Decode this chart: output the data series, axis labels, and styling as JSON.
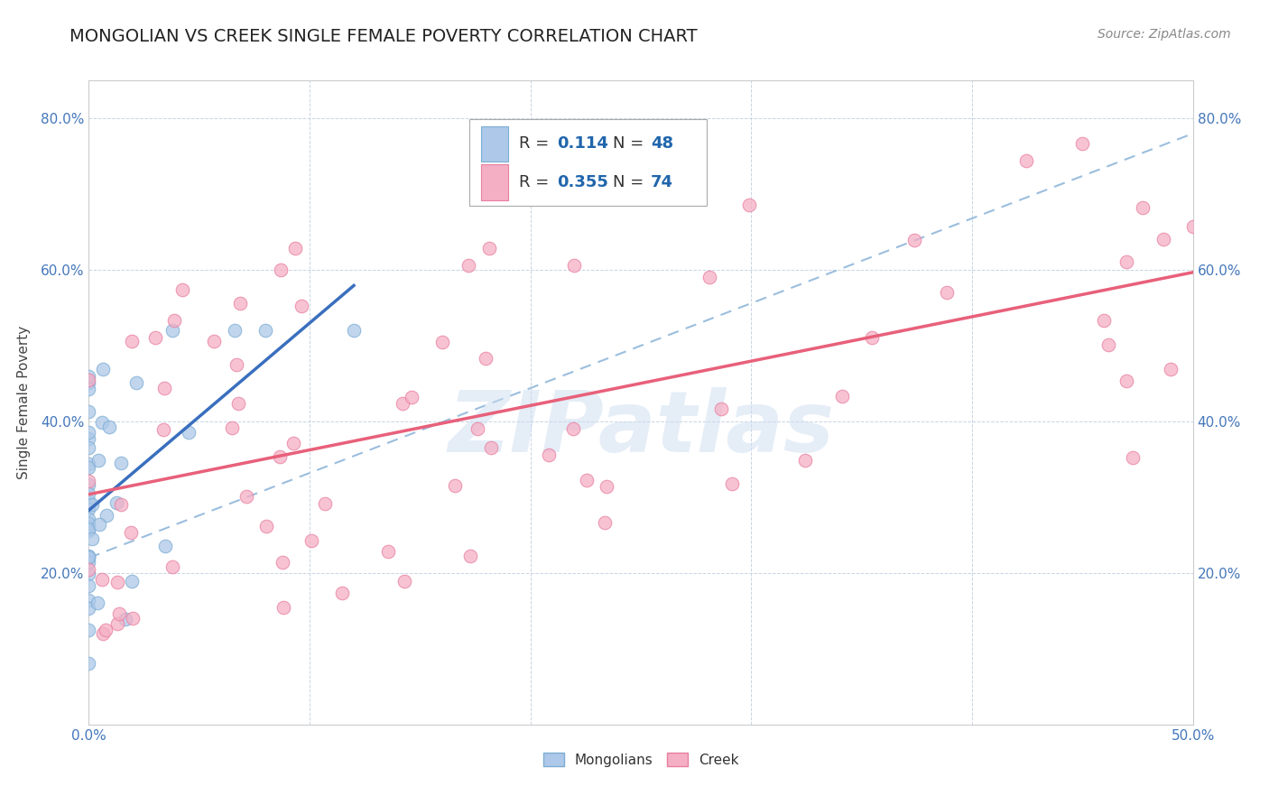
{
  "title": "MONGOLIAN VS CREEK SINGLE FEMALE POVERTY CORRELATION CHART",
  "source": "Source: ZipAtlas.com",
  "ylabel": "Single Female Poverty",
  "xlim": [
    0.0,
    0.5
  ],
  "ylim": [
    0.0,
    0.85
  ],
  "xtick_labels": [
    "0.0%",
    "",
    "",
    "",
    "",
    "50.0%"
  ],
  "xtick_vals": [
    0.0,
    0.1,
    0.2,
    0.3,
    0.4,
    0.5
  ],
  "ytick_labels": [
    "20.0%",
    "40.0%",
    "60.0%",
    "80.0%"
  ],
  "ytick_vals": [
    0.2,
    0.4,
    0.6,
    0.8
  ],
  "mongolian_R": 0.114,
  "mongolian_N": 48,
  "creek_R": 0.355,
  "creek_N": 74,
  "mongolian_color": "#adc8e8",
  "creek_color": "#f5afc5",
  "mongolian_edge_color": "#7badd4",
  "creek_edge_color": "#e87fa0",
  "trendline_mongolian_color": "#3a6fbe",
  "trendline_creek_color": "#e8607a",
  "dashed_line_color": "#9bbede",
  "background_color": "#ffffff",
  "grid_color": "#c8d4e4",
  "watermark": "ZIPatlas",
  "legend_label_color": "#333333",
  "legend_value_color": "#2166ac"
}
